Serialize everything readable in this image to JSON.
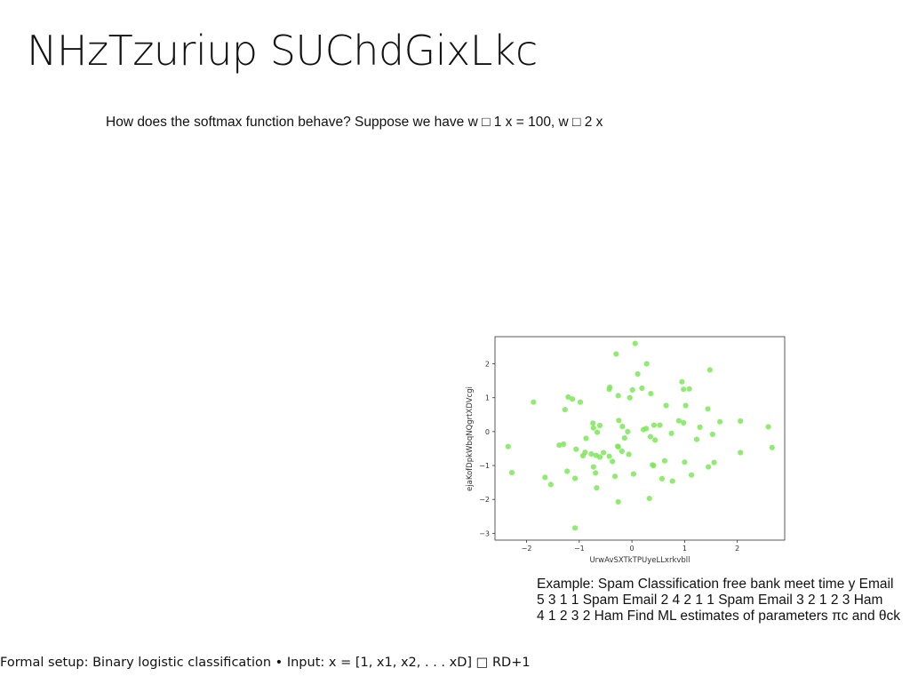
{
  "slide": {
    "title": "NHzTzuriup SUChdGixLkc",
    "question": "How does the softmax function behave? Suppose we have w □ 1 x = 100, w □ 2 x",
    "example_lines": [
      "Example: Spam Classification free bank meet time y Email",
      "5 3 1 1 Spam Email 2 4 2 1 1 Spam Email 3 2 1 2 3 Ham",
      "4 1 2 3 2 Ham Find ML estimates of parameters πc and θck"
    ],
    "footer": "Formal setup: Binary logistic classification • Input: x = [1, x1, x2, . . . xD] □ RD+1"
  },
  "chart_data": {
    "type": "scatter",
    "title": "",
    "xlabel": "UrwAvSXTkTPUyeLLxrkvbll",
    "ylabel": "ejaKofDpkWbqNQgrtXDVcgi",
    "xlim": [
      -2.6,
      2.9
    ],
    "ylim": [
      -3.2,
      2.8
    ],
    "xticks": [
      -2,
      -1,
      0,
      1,
      2
    ],
    "yticks": [
      -3,
      -2,
      -1,
      0,
      1,
      2
    ],
    "xtick_labels": [
      "−2",
      "−1",
      "0",
      "1",
      "2"
    ],
    "ytick_labels": [
      "−3",
      "−2",
      "−1",
      "0",
      "1",
      "2"
    ],
    "grid": false,
    "marker_color": "#7ee85a",
    "x": [
      0.06,
      -0.3,
      0.28,
      0.95,
      1.48,
      0.11,
      -0.42,
      0.01,
      -0.04,
      0.19,
      -1.21,
      -0.26,
      0.36,
      0.65,
      0.98,
      1.09,
      -0.43,
      -1.13,
      -0.98,
      0.53,
      1.44,
      1.02,
      -1.87,
      -1.27,
      -0.74,
      -0.61,
      -0.25,
      -0.18,
      0.22,
      0.89,
      0.98,
      1.67,
      2.06,
      2.59,
      1.29,
      0.42,
      0.27,
      -0.08,
      -0.14,
      -0.66,
      -0.73,
      -0.87,
      -1.3,
      0.75,
      1.53,
      1.23,
      0.35,
      0.44,
      -0.26,
      -0.54,
      -0.77,
      -0.89,
      -1.06,
      -0.93,
      -1.38,
      0.41,
      0.62,
      0.39,
      -0.06,
      1.0,
      1.56,
      2.06,
      -0.37,
      -0.43,
      -0.68,
      -0.61,
      -0.73,
      -1.08,
      -1.23,
      -2.35,
      -2.28,
      -1.54,
      -1.65,
      -0.69,
      -0.32,
      0.03,
      1.13,
      1.45,
      2.66,
      0.57,
      0.77,
      -0.67,
      0.33,
      -0.26,
      -1.08,
      -0.27,
      -0.19
    ],
    "y": [
      2.6,
      2.29,
      2.0,
      1.47,
      1.82,
      1.7,
      1.31,
      1.23,
      1.0,
      1.28,
      1.02,
      1.06,
      1.12,
      0.77,
      1.25,
      1.26,
      1.25,
      0.96,
      0.87,
      0.19,
      0.67,
      0.77,
      0.87,
      0.65,
      0.25,
      0.18,
      0.33,
      0.15,
      0.06,
      0.32,
      0.26,
      0.29,
      0.31,
      0.14,
      0.13,
      0.19,
      0.09,
      -0.0,
      -0.19,
      -0.02,
      0.11,
      -0.2,
      -0.37,
      -0.05,
      -0.08,
      -0.23,
      -0.15,
      -0.25,
      -0.45,
      -0.62,
      -0.66,
      -0.61,
      -0.52,
      -0.71,
      -0.4,
      -1.0,
      -0.86,
      -0.98,
      -0.67,
      -0.9,
      -0.91,
      -0.62,
      -0.88,
      -0.73,
      -0.7,
      -0.75,
      -1.04,
      -1.38,
      -1.17,
      -0.44,
      -1.21,
      -1.56,
      -1.35,
      -1.22,
      -1.32,
      -1.25,
      -1.28,
      -1.04,
      -0.47,
      -1.39,
      -1.46,
      -1.66,
      -1.97,
      -2.07,
      -2.84,
      -0.43,
      -0.58
    ]
  }
}
